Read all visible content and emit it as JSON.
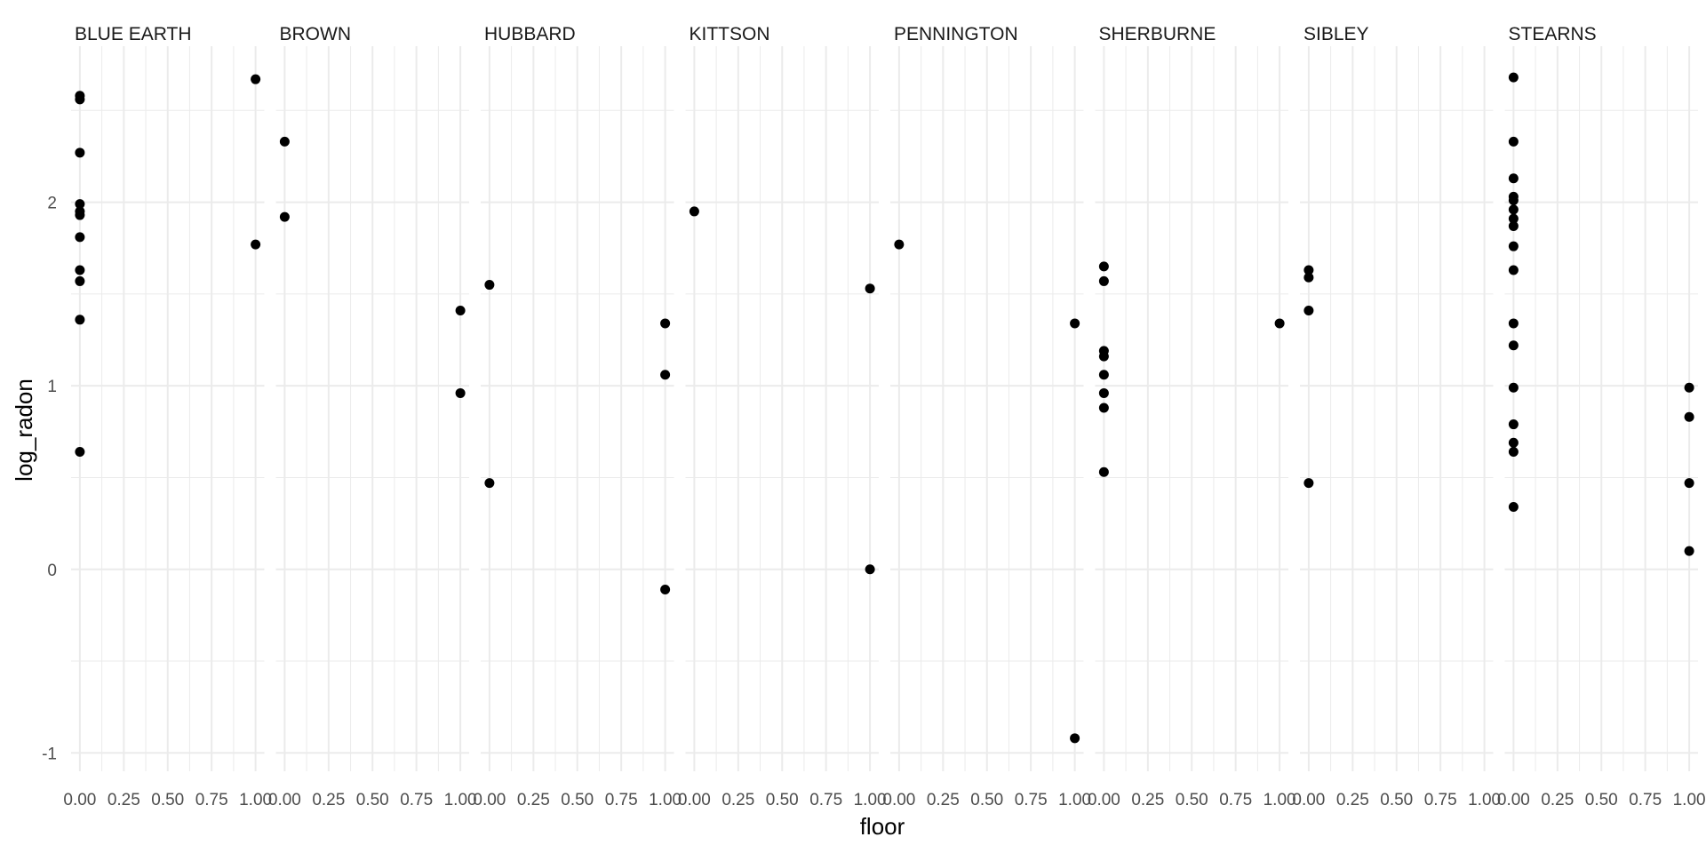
{
  "chart_data": {
    "type": "scatter",
    "facet_by": "county",
    "xlabel": "floor",
    "ylabel": "log_radon",
    "xlim": [
      -0.05,
      1.05
    ],
    "ylim": [
      -1.1,
      2.85
    ],
    "x_ticks": [
      0,
      0.25,
      0.5,
      0.75,
      1
    ],
    "x_tick_labels": [
      "0.00",
      "0.25",
      "0.50",
      "0.75",
      "1.00"
    ],
    "y_ticks": [
      -1,
      0,
      1,
      2
    ],
    "y_tick_labels": [
      "-1",
      "0",
      "1",
      "2"
    ],
    "grid": true,
    "legend": "none",
    "point_color": "#000000",
    "facets": [
      {
        "name": "BLUE EARTH",
        "points": [
          [
            0,
            2.58
          ],
          [
            0,
            2.56
          ],
          [
            0,
            2.27
          ],
          [
            0,
            1.99
          ],
          [
            0,
            1.95
          ],
          [
            0,
            1.93
          ],
          [
            0,
            1.81
          ],
          [
            0,
            1.63
          ],
          [
            0,
            1.57
          ],
          [
            0,
            1.36
          ],
          [
            0,
            0.64
          ],
          [
            1,
            2.67
          ],
          [
            1,
            1.77
          ]
        ]
      },
      {
        "name": "BROWN",
        "points": [
          [
            0,
            2.33
          ],
          [
            0,
            1.92
          ],
          [
            1,
            1.41
          ],
          [
            1,
            0.96
          ]
        ]
      },
      {
        "name": "HUBBARD",
        "points": [
          [
            0,
            1.55
          ],
          [
            0,
            0.47
          ],
          [
            1,
            1.34
          ],
          [
            1,
            1.06
          ],
          [
            1,
            -0.11
          ]
        ]
      },
      {
        "name": "KITTSON",
        "points": [
          [
            0,
            1.95
          ],
          [
            1,
            1.53
          ],
          [
            1,
            0.0
          ]
        ]
      },
      {
        "name": "PENNINGTON",
        "points": [
          [
            0,
            1.77
          ],
          [
            1,
            1.34
          ],
          [
            1,
            -0.92
          ]
        ]
      },
      {
        "name": "SHERBURNE",
        "points": [
          [
            0,
            1.65
          ],
          [
            0,
            1.57
          ],
          [
            0,
            1.19
          ],
          [
            0,
            1.16
          ],
          [
            0,
            1.06
          ],
          [
            0,
            0.96
          ],
          [
            0,
            0.88
          ],
          [
            0,
            0.53
          ],
          [
            1,
            1.34
          ]
        ]
      },
      {
        "name": "SIBLEY",
        "points": [
          [
            0,
            1.63
          ],
          [
            0,
            1.59
          ],
          [
            0,
            1.41
          ],
          [
            0,
            0.47
          ]
        ]
      },
      {
        "name": "STEARNS",
        "points": [
          [
            0,
            2.68
          ],
          [
            0,
            2.33
          ],
          [
            0,
            2.13
          ],
          [
            0,
            2.03
          ],
          [
            0,
            2.01
          ],
          [
            0,
            1.96
          ],
          [
            0,
            1.91
          ],
          [
            0,
            1.87
          ],
          [
            0,
            1.76
          ],
          [
            0,
            1.63
          ],
          [
            0,
            1.34
          ],
          [
            0,
            1.22
          ],
          [
            0,
            0.99
          ],
          [
            0,
            0.79
          ],
          [
            0,
            0.69
          ],
          [
            0,
            0.64
          ],
          [
            0,
            0.34
          ],
          [
            1,
            0.99
          ],
          [
            1,
            0.83
          ],
          [
            1,
            0.47
          ],
          [
            1,
            0.1
          ]
        ]
      }
    ]
  }
}
